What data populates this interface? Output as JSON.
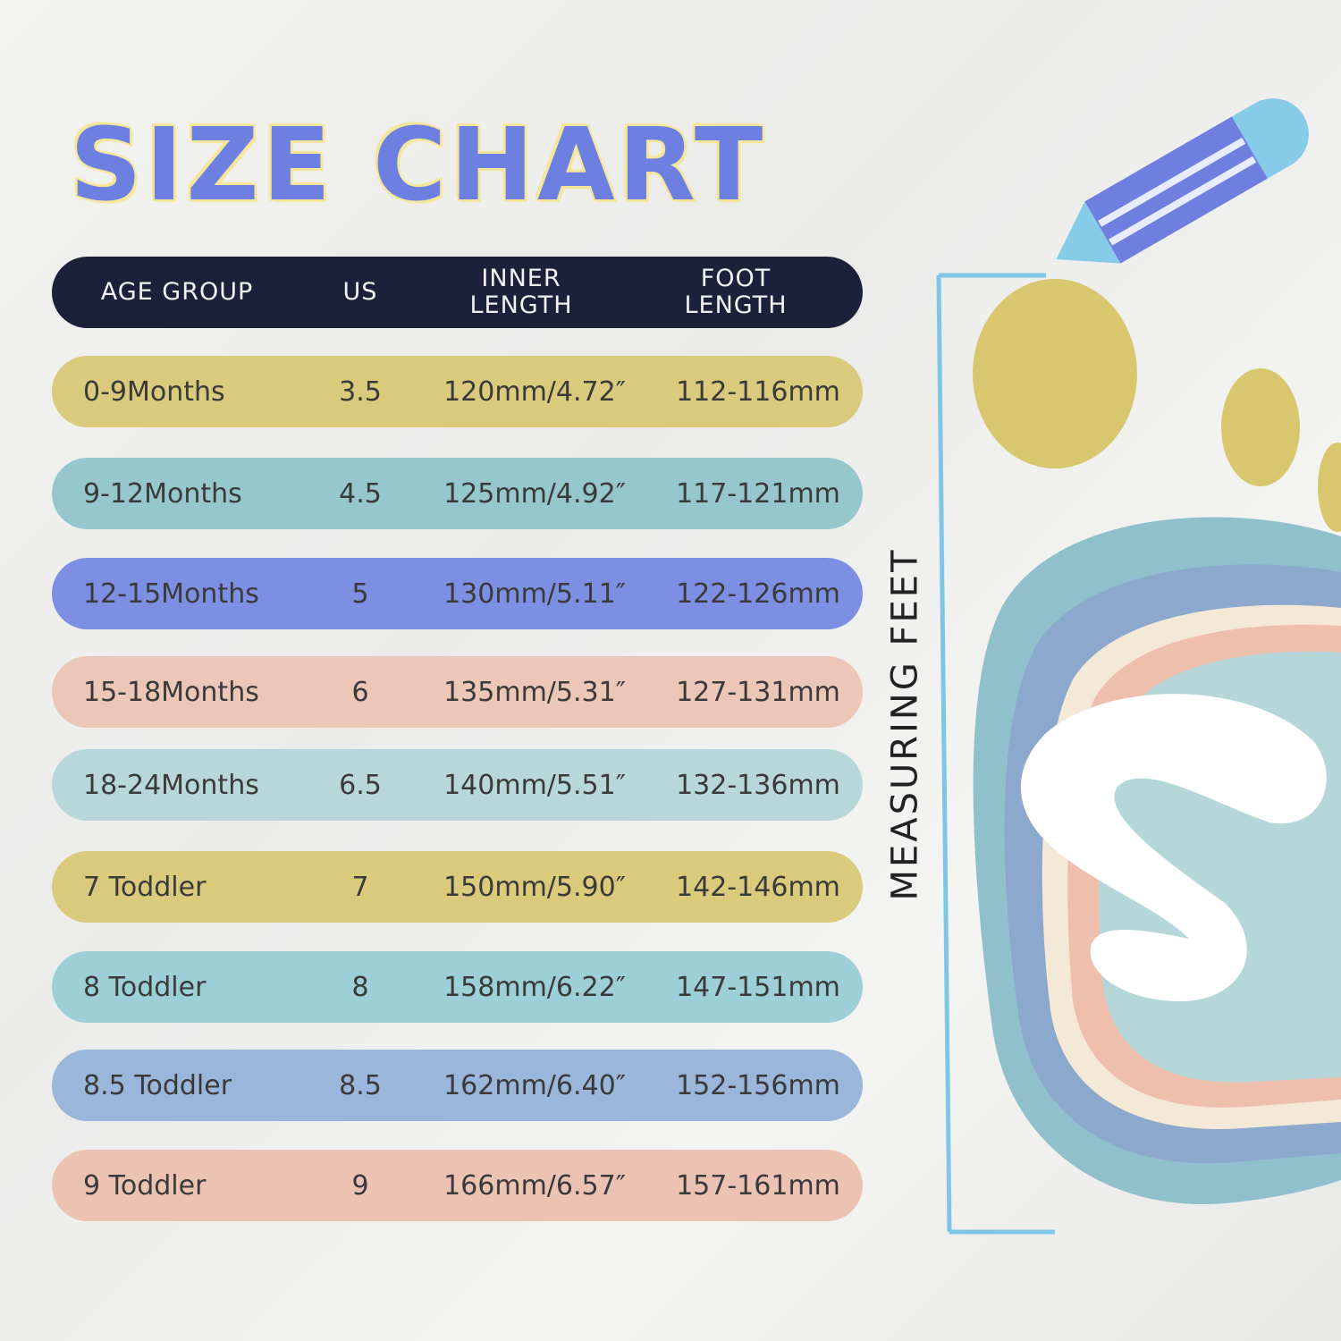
{
  "title": "SIZE CHART",
  "header": [
    "AGE GROUP",
    "US",
    "INNER LENGTH",
    "FOOT LENGTH"
  ],
  "rows": [
    {
      "age": "0-9Months",
      "us": "3.5",
      "inner": "120mm/4.72″",
      "foot": "112-116mm",
      "color": "#d9ca7c"
    },
    {
      "age": "9-12Months",
      "us": "4.5",
      "inner": "125mm/4.92″",
      "foot": "117-121mm",
      "color": "#96c7cd"
    },
    {
      "age": "12-15Months",
      "us": "5",
      "inner": "130mm/5.11″",
      "foot": "122-126mm",
      "color": "#7d8fe2"
    },
    {
      "age": "15-18Months",
      "us": "6",
      "inner": "135mm/5.31″",
      "foot": "127-131mm",
      "color": "#ecc6b6"
    },
    {
      "age": "18-24Months",
      "us": "6.5",
      "inner": "140mm/5.51″",
      "foot": "132-136mm",
      "color": "#b8d7db"
    },
    {
      "age": "7 Toddler",
      "us": "7",
      "inner": "150mm/5.90″",
      "foot": "142-146mm",
      "color": "#d9ca7c"
    },
    {
      "age": "8 Toddler",
      "us": "8",
      "inner": "158mm/6.22″",
      "foot": "147-151mm",
      "color": "#9ccfd6"
    },
    {
      "age": "8.5 Toddler",
      "us": "8.5",
      "inner": "162mm/6.40″",
      "foot": "152-156mm",
      "color": "#9ab6da"
    },
    {
      "age": "9 Toddler",
      "us": "9",
      "inner": "166mm/6.57″",
      "foot": "157-161mm",
      "color": "#ecc2b3"
    }
  ],
  "measuring_label": "MEASURING FEET",
  "colors": {
    "header_bg": "#1c2038",
    "title": "#6d80e2",
    "title_outline": "#f4e79c",
    "ruler": "#7fc6e6"
  },
  "icons": [
    "pencil-icon",
    "foot-illustration"
  ]
}
